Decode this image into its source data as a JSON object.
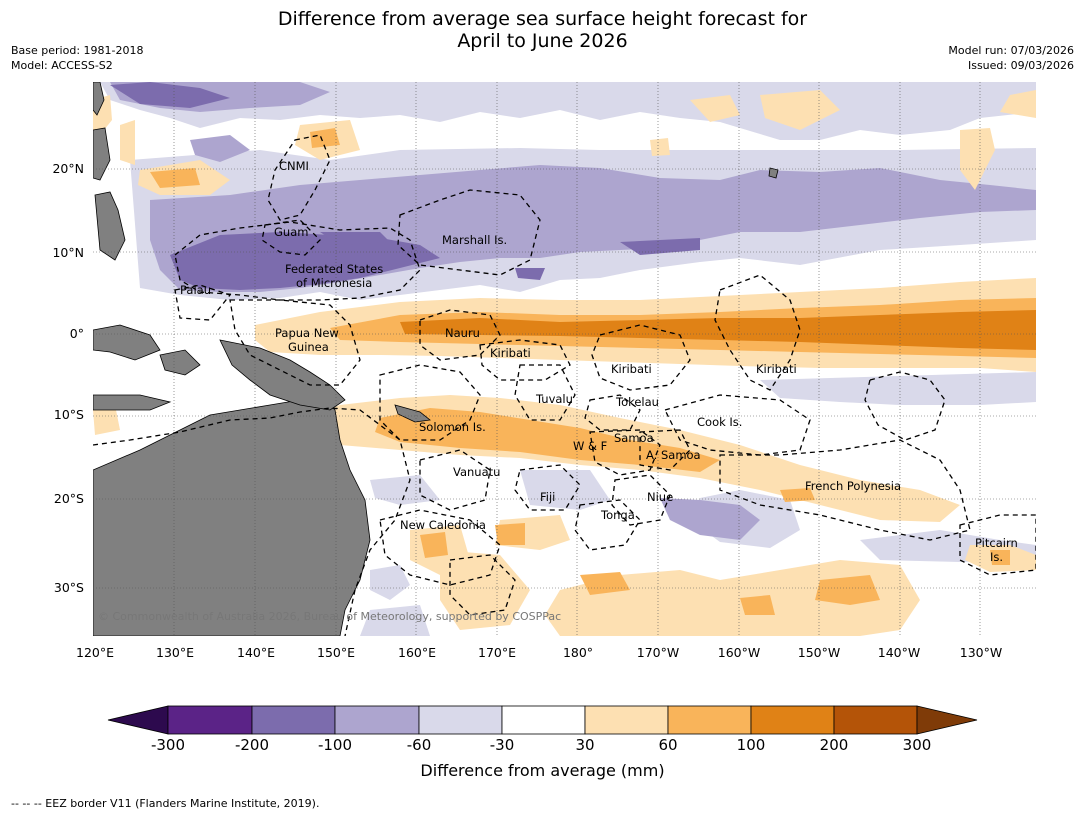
{
  "title": {
    "line1": "Difference from average sea surface height forecast for",
    "line2": "April to June 2026"
  },
  "meta_left": {
    "base_period": "Base period: 1981-2018",
    "model": "Model: ACCESS-S2"
  },
  "meta_right": {
    "model_run": "Model run: 07/03/2026",
    "issued": "Issued: 09/03/2026"
  },
  "map": {
    "copyright": "© Commonwealth of Australia 2026, Bureau of Meteorology, supported by COSPPac",
    "longitude_labels": [
      "120°E",
      "130°E",
      "140°E",
      "150°E",
      "160°E",
      "170°E",
      "180°",
      "170°W",
      "160°W",
      "150°W",
      "140°W",
      "130°W"
    ],
    "latitude_labels": [
      "20°N",
      "10°N",
      "0°",
      "10°S",
      "20°S",
      "30°S"
    ],
    "region_labels": [
      "CNMI",
      "Guam",
      "Marshall Is.",
      "Federated States",
      "of Micronesia",
      "Palau",
      "Papua New",
      "Guinea",
      "Nauru",
      "Kiribati",
      "Kiribati",
      "Kiribati",
      "Tuvalu",
      "Tokelau",
      "Cook Is.",
      "Solomon Is.",
      "Samoa",
      "W & F",
      "A. Samoa",
      "Vanuatu",
      "Fiji",
      "Niue",
      "French Polynesia",
      "New Caledonia",
      "Tonga",
      "Pitcairn",
      "Is."
    ]
  },
  "colorbar": {
    "colors": [
      "#2d0a4e",
      "#5b2387",
      "#7c6cad",
      "#ada5cf",
      "#d9d9ea",
      "#ffffff",
      "#fde0b2",
      "#f9b45a",
      "#e08216",
      "#b45408",
      "#7f3b08"
    ],
    "ticks": [
      "-300",
      "-200",
      "-100",
      "-60",
      "-30",
      "30",
      "60",
      "100",
      "200",
      "300"
    ],
    "label": "Difference from average (mm)"
  },
  "footer": "-- -- -- EEZ border V11 (Flanders Marine Institute, 2019)."
}
